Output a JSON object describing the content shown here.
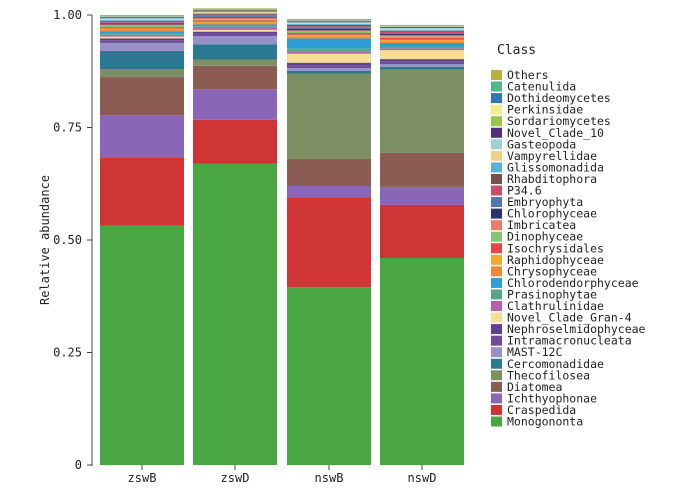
{
  "chart_data": {
    "type": "bar",
    "stacked": true,
    "ylabel": "Relative abundance",
    "ylim": [
      0,
      1
    ],
    "yticks": [
      "0",
      "0.25",
      "0.50",
      "0.75",
      "1.00"
    ],
    "grid": false,
    "legend_placement": "right",
    "legend_title": "Class",
    "categories": [
      "zswB",
      "zswD",
      "nswB",
      "nswD"
    ],
    "series": [
      {
        "name": "Monogononta",
        "color": "#4aa543",
        "values": [
          0.532,
          0.67,
          0.395,
          0.46
        ]
      },
      {
        "name": "Craspedida",
        "color": "#cf3535",
        "values": [
          0.152,
          0.097,
          0.2,
          0.118
        ]
      },
      {
        "name": "Ichthyophonae",
        "color": "#8a66b9",
        "values": [
          0.093,
          0.068,
          0.025,
          0.04
        ]
      },
      {
        "name": "Diatomea",
        "color": "#8b5c52",
        "values": [
          0.085,
          0.052,
          0.06,
          0.076
        ]
      },
      {
        "name": "Thecofilosea",
        "color": "#7c9063",
        "values": [
          0.018,
          0.014,
          0.19,
          0.185
        ]
      },
      {
        "name": "Cercomonadidae",
        "color": "#2a7891",
        "values": [
          0.04,
          0.034,
          0.006,
          0.006
        ]
      },
      {
        "name": "MAST-12C",
        "color": "#9791c8",
        "values": [
          0.018,
          0.018,
          0.006,
          0.006
        ]
      },
      {
        "name": "Intramacronucleata",
        "color": "#6f4c9c",
        "values": [
          0.006,
          0.006,
          0.006,
          0.006
        ]
      },
      {
        "name": "Nephroselmidophyceae",
        "color": "#5e3f92",
        "values": [
          0.004,
          0.004,
          0.006,
          0.005
        ]
      },
      {
        "name": "Novel_Clade_Gran-4",
        "color": "#f6de96",
        "values": [
          0.004,
          0.004,
          0.02,
          0.02
        ]
      },
      {
        "name": "Clathrulinidae",
        "color": "#b55fae",
        "values": [
          0.004,
          0.004,
          0.004,
          0.004
        ]
      },
      {
        "name": "Prasinophytae",
        "color": "#57a78d",
        "values": [
          0.004,
          0.004,
          0.008,
          0.004
        ]
      },
      {
        "name": "Chlorodendorphyceae",
        "color": "#2d9ed6",
        "values": [
          0.004,
          0.004,
          0.022,
          0.008
        ]
      },
      {
        "name": "Chrysophyceae",
        "color": "#ef8735",
        "values": [
          0.003,
          0.003,
          0.004,
          0.003
        ]
      },
      {
        "name": "Raphidophyceae",
        "color": "#f2a731",
        "values": [
          0.003,
          0.003,
          0.004,
          0.004
        ]
      },
      {
        "name": "Isochrysidales",
        "color": "#e6454c",
        "values": [
          0.003,
          0.003,
          0.004,
          0.004
        ]
      },
      {
        "name": "Dinophyceae",
        "color": "#86c56f",
        "values": [
          0.003,
          0.003,
          0.003,
          0.003
        ]
      },
      {
        "name": "Imbricatea",
        "color": "#ea7c6b",
        "values": [
          0.003,
          0.003,
          0.003,
          0.003
        ]
      },
      {
        "name": "Chlorophyceae",
        "color": "#2e316f",
        "values": [
          0.002,
          0.002,
          0.003,
          0.003
        ]
      },
      {
        "name": "Embryophyta",
        "color": "#5574b5",
        "values": [
          0.002,
          0.002,
          0.003,
          0.002
        ]
      },
      {
        "name": "P34.6",
        "color": "#cd4b6b",
        "values": [
          0.002,
          0.002,
          0.003,
          0.003
        ]
      },
      {
        "name": "Rhabditophora",
        "color": "#7a4d4b",
        "values": [
          0.002,
          0.002,
          0.003,
          0.002
        ]
      },
      {
        "name": "Glissomonadida",
        "color": "#5ab3d6",
        "values": [
          0.002,
          0.002,
          0.002,
          0.002
        ]
      },
      {
        "name": "Vampyrellidae",
        "color": "#f0cf88",
        "values": [
          0.002,
          0.002,
          0.002,
          0.002
        ]
      },
      {
        "name": "Gasteopoda",
        "color": "#9dcfd3",
        "values": [
          0.002,
          0.002,
          0.002,
          0.002
        ]
      },
      {
        "name": "Novel_Clade_10",
        "color": "#4b2f7c",
        "values": [
          0.002,
          0.002,
          0.002,
          0.002
        ]
      },
      {
        "name": "Sordariomycetes",
        "color": "#9ac64c",
        "values": [
          0.001,
          0.001,
          0.001,
          0.001
        ]
      },
      {
        "name": "Perkinsidae",
        "color": "#f3ed8e",
        "values": [
          0.001,
          0.001,
          0.001,
          0.001
        ]
      },
      {
        "name": "Dothideomycetes",
        "color": "#2f76b3",
        "values": [
          0.001,
          0.001,
          0.001,
          0.001
        ]
      },
      {
        "name": "Catenulida",
        "color": "#52b68b",
        "values": [
          0.001,
          0.001,
          0.001,
          0.001
        ]
      },
      {
        "name": "Others",
        "color": "#b9b043",
        "values": [
          0.001,
          0.001,
          0.001,
          0.001
        ]
      }
    ]
  }
}
